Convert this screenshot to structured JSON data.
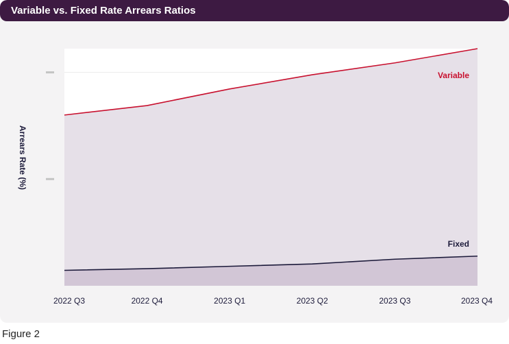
{
  "header": {
    "title": "Variable vs. Fixed Rate Arrears Ratios"
  },
  "caption": "Figure 2",
  "colors": {
    "variable": "#c8102e",
    "fixed": "#1c1a3a",
    "variable_fill": "#e6e0e8",
    "fixed_fill": "#d2c6d6",
    "title_bg": "#3d1a42"
  },
  "chart_data": {
    "type": "area",
    "title": "Variable vs. Fixed Rate Arrears Ratios",
    "xlabel": "",
    "ylabel": "Arrears Rate (%)",
    "categories": [
      "2022 Q3",
      "2022 Q4",
      "2023 Q1",
      "2023 Q2",
      "2023 Q3",
      "2023 Q4"
    ],
    "ylim": [
      0,
      100
    ],
    "grid": true,
    "yticks": [
      45,
      90
    ],
    "ytick_labels": [
      "",
      ""
    ],
    "series": [
      {
        "name": "Variable",
        "label": "Variable",
        "values": [
          72,
          76,
          83,
          89,
          94,
          100
        ]
      },
      {
        "name": "Fixed",
        "label": "Fixed",
        "values": [
          6.5,
          7.2,
          8.2,
          9.2,
          11.2,
          12.5
        ]
      }
    ]
  }
}
